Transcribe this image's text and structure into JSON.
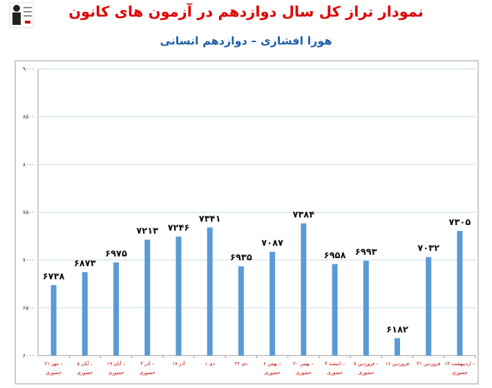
{
  "chart_data": {
    "type": "bar",
    "title": "نمودار تراز کل سال دوازدهم در آزمون های کانون",
    "subtitle": "هورا افشاری – دوازدهم انسانی",
    "categories": [
      [
        "۲۱ مهر –",
        "حضوری"
      ],
      [
        "۵ آبان –",
        "حضوری"
      ],
      [
        "۱۹ آبان –",
        "حضوری"
      ],
      [
        "۳ آذر –",
        "حضوری"
      ],
      [
        "۱۷ آذر"
      ],
      [
        "۱ دی"
      ],
      [
        "۲۲ دی"
      ],
      [
        "۶ بهمن –",
        "حضوری"
      ],
      [
        "۲۰ بهمن –",
        "حضوری"
      ],
      [
        "۴ اسفند –",
        "حضوری"
      ],
      [
        "۷ فروردین –",
        "حضوری"
      ],
      [
        "۱۶ فروردین"
      ],
      [
        "۳۱ فروردین"
      ],
      [
        "۱۴ اردیبهشت –",
        "حضوری"
      ]
    ],
    "values": [
      6738,
      6873,
      6975,
      7213,
      7246,
      7341,
      6935,
      7087,
      7384,
      6958,
      6993,
      6182,
      7032,
      7305
    ],
    "value_labels": [
      "۶۷۳۸",
      "۶۸۷۳",
      "۶۹۷۵",
      "۷۲۱۳",
      "۷۲۴۶",
      "۷۳۴۱",
      "۶۹۳۵",
      "۷۰۸۷",
      "۷۳۸۴",
      "۶۹۵۸",
      "۶۹۹۳",
      "۶۱۸۲",
      "۷۰۳۲",
      "۷۳۰۵"
    ],
    "color": "#5b9bd5",
    "ylim": [
      6000,
      9000
    ],
    "yticks": [
      {
        "value": 6000,
        "label": "۶۰۰۰"
      },
      {
        "value": 6500,
        "label": "۶۵۰۰"
      },
      {
        "value": 7000,
        "label": "۷۰۰۰"
      },
      {
        "value": 7500,
        "label": "۷۵۰۰"
      },
      {
        "value": 8000,
        "label": "۸۰۰۰"
      },
      {
        "value": 8500,
        "label": "۸۵۰۰"
      },
      {
        "value": 9000,
        "label": "۹۰۰۰"
      }
    ],
    "grid": true
  }
}
